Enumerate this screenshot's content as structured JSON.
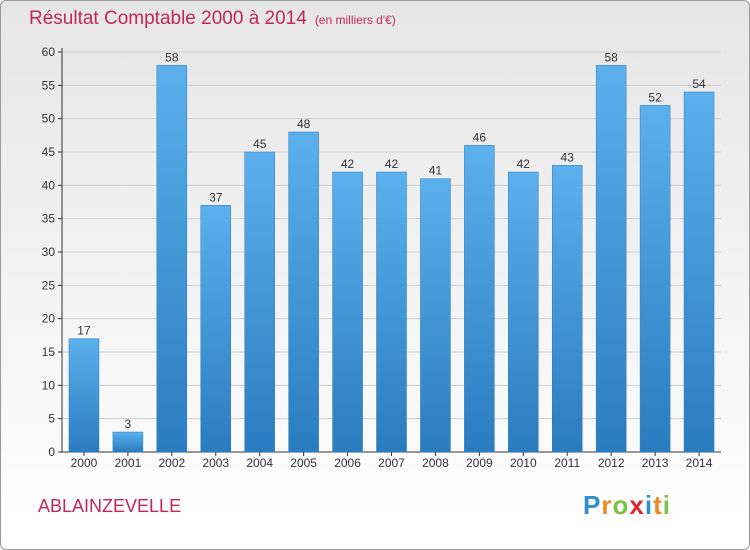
{
  "chart_data": {
    "type": "bar",
    "title": "Résultat Comptable 2000 à 2014",
    "subtitle": "(en milliers d'€)",
    "categories": [
      "2000",
      "2001",
      "2002",
      "2003",
      "2004",
      "2005",
      "2006",
      "2007",
      "2008",
      "2009",
      "2010",
      "2011",
      "2012",
      "2013",
      "2014"
    ],
    "values": [
      17,
      3,
      58,
      37,
      45,
      48,
      42,
      42,
      41,
      46,
      42,
      43,
      58,
      52,
      54
    ],
    "ylim": [
      0,
      60
    ],
    "yticks": [
      0,
      5,
      10,
      15,
      20,
      25,
      30,
      35,
      40,
      45,
      50,
      55,
      60
    ],
    "xlabel": "",
    "ylabel": "",
    "grid": true,
    "bar_color_light": "#5cb0ec",
    "bar_color_dark": "#2a7cc0"
  },
  "place_name": "ABLAINZEVELLE",
  "logo": {
    "letters": [
      "P",
      "r",
      "o",
      "x",
      "i",
      "t",
      "i"
    ],
    "colors": [
      "#2e8fd0",
      "#f08a1e",
      "#7cc242",
      "#e2282e",
      "#2e8fd0",
      "#f08a1e",
      "#7cc242"
    ]
  }
}
